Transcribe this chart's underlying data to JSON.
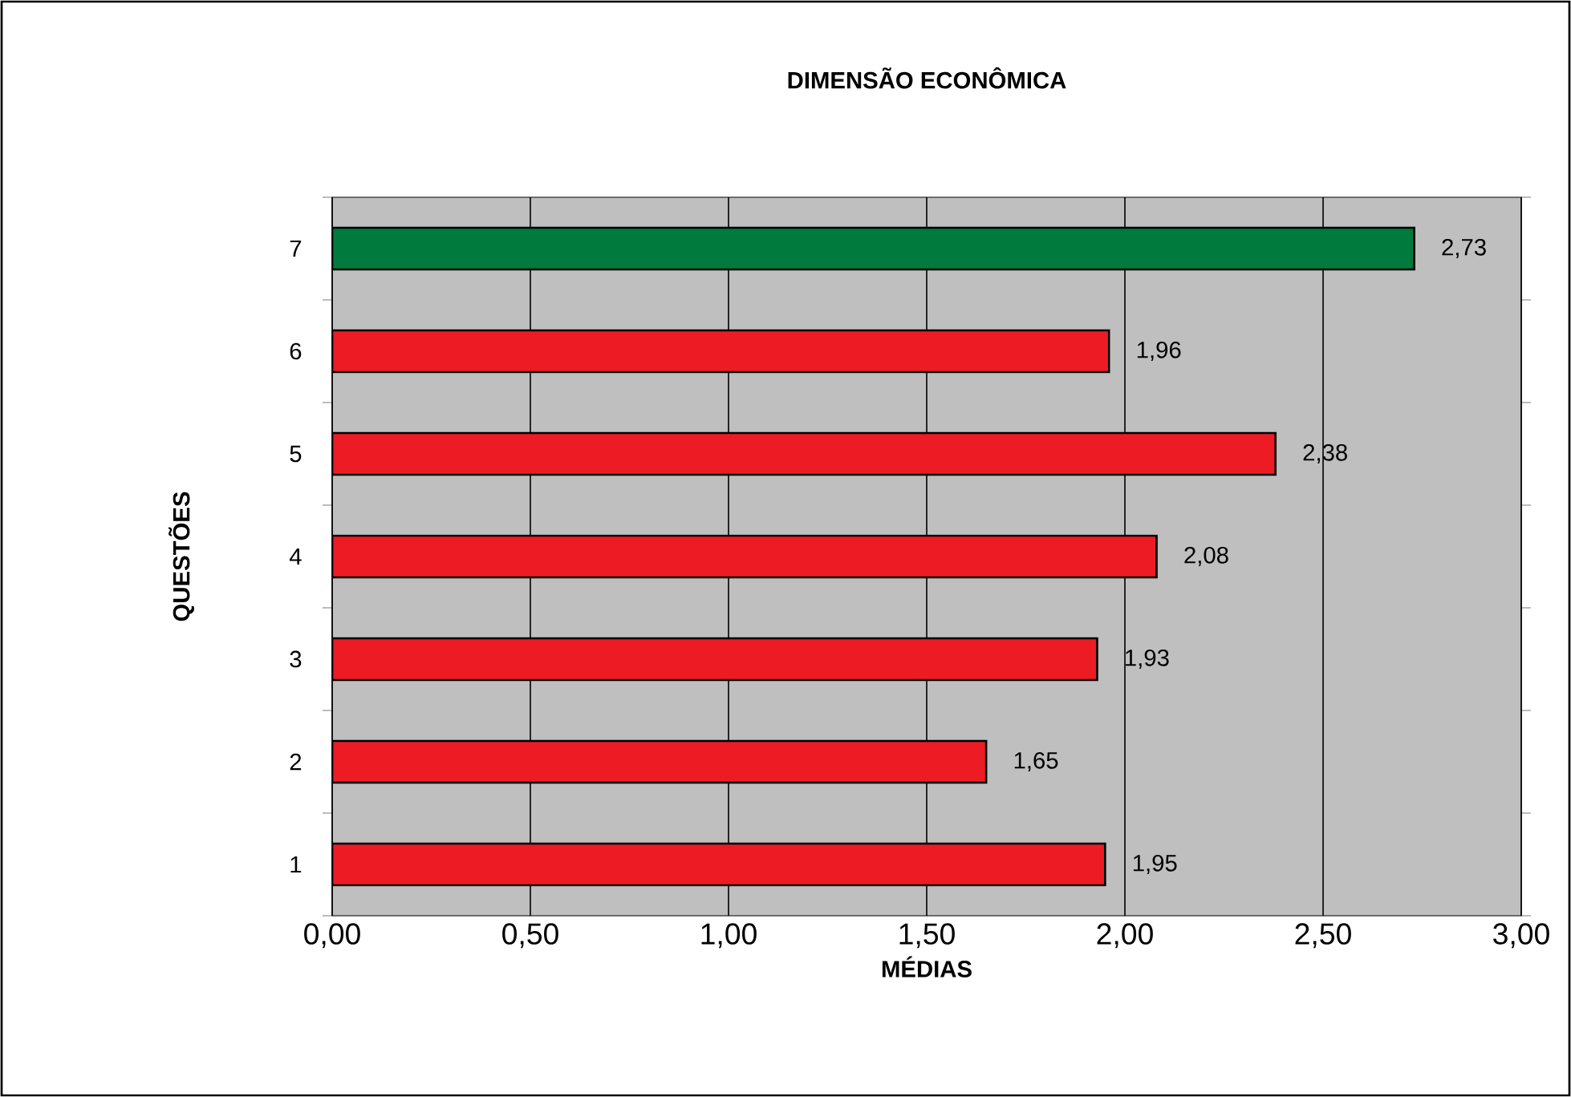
{
  "chart_data": {
    "type": "bar",
    "orientation": "horizontal",
    "title": "DIMENSÃO  ECONÔMICA",
    "xlabel": "MÉDIAS",
    "ylabel": "QUESTÕES",
    "categories": [
      "7",
      "6",
      "5",
      "4",
      "3",
      "2",
      "1"
    ],
    "values": [
      2.73,
      1.96,
      2.38,
      2.08,
      1.93,
      1.65,
      1.95
    ],
    "colors": [
      "#007a3d",
      "#ed1c24",
      "#ed1c24",
      "#ed1c24",
      "#ed1c24",
      "#ed1c24",
      "#ed1c24"
    ],
    "value_labels": [
      "2,73",
      "1,96",
      "2,38",
      "2,08",
      "1,93",
      "1,65",
      "1,95"
    ],
    "xlim": [
      0,
      3
    ],
    "xticks": [
      {
        "value": 0,
        "label": "0,00"
      },
      {
        "value": 0.5,
        "label": "0,50"
      },
      {
        "value": 1,
        "label": "1,00"
      },
      {
        "value": 1.5,
        "label": "1,50"
      },
      {
        "value": 2,
        "label": "2,00"
      },
      {
        "value": 2.5,
        "label": "2,50"
      },
      {
        "value": 3,
        "label": "3,00"
      }
    ],
    "grid": "x"
  }
}
